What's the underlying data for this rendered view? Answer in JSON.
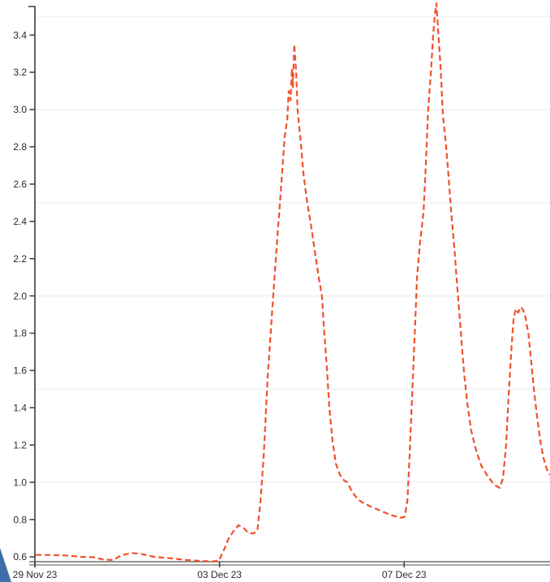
{
  "chart_data": {
    "type": "line",
    "title": "",
    "xlabel": "",
    "ylabel": "",
    "legend": "none",
    "grid": "horizontal, every 0.5 from 1.0 to 3.5, very light",
    "x_axis": {
      "unit": "date",
      "ticks": [
        {
          "d": 0,
          "label": "29 Nov 23"
        },
        {
          "d": 4,
          "label": "03 Dec 23"
        },
        {
          "d": 8,
          "label": "07 Dec 23"
        }
      ],
      "range_days_shown": [
        0,
        11.16
      ]
    },
    "y_axis": {
      "tick_values": [
        0.6,
        0.8,
        1.0,
        1.2,
        1.4,
        1.6,
        1.8,
        2.0,
        2.2,
        2.4,
        2.6,
        2.8,
        3.0,
        3.2,
        3.4
      ],
      "tick_labels": [
        "0.6",
        "0.8",
        "1.0",
        "1.2",
        "1.4",
        "1.6",
        "1.8",
        "2.0",
        "2.2",
        "2.4",
        "2.6",
        "2.8",
        "3.0",
        "3.2",
        "3.4"
      ],
      "range_shown": [
        0.57,
        3.59
      ]
    },
    "gridline_values": [
      1.0,
      1.5,
      2.0,
      2.5,
      3.0,
      3.5
    ],
    "series": [
      {
        "name": "dashed-orange-series",
        "style": "dashed",
        "color": "#f0512c",
        "points": [
          [
            0.02,
            0.61
          ],
          [
            0.3,
            0.61
          ],
          [
            0.65,
            0.608
          ],
          [
            1.0,
            0.6
          ],
          [
            1.27,
            0.598
          ],
          [
            1.49,
            0.585
          ],
          [
            1.7,
            0.583
          ],
          [
            1.88,
            0.61
          ],
          [
            2.11,
            0.62
          ],
          [
            2.32,
            0.615
          ],
          [
            2.58,
            0.6
          ],
          [
            2.94,
            0.592
          ],
          [
            3.29,
            0.583
          ],
          [
            3.6,
            0.578
          ],
          [
            3.85,
            0.575
          ],
          [
            3.99,
            0.58
          ],
          [
            4.1,
            0.64
          ],
          [
            4.2,
            0.7
          ],
          [
            4.31,
            0.74
          ],
          [
            4.41,
            0.77
          ],
          [
            4.52,
            0.755
          ],
          [
            4.62,
            0.73
          ],
          [
            4.73,
            0.725
          ],
          [
            4.82,
            0.74
          ],
          [
            4.89,
            0.9
          ],
          [
            4.96,
            1.15
          ],
          [
            5.04,
            1.55
          ],
          [
            5.15,
            1.95
          ],
          [
            5.25,
            2.3
          ],
          [
            5.34,
            2.6
          ],
          [
            5.41,
            2.85
          ],
          [
            5.47,
            2.95
          ],
          [
            5.5,
            3.1
          ],
          [
            5.54,
            3.05
          ],
          [
            5.57,
            3.22
          ],
          [
            5.59,
            3.12
          ],
          [
            5.62,
            3.35
          ],
          [
            5.66,
            3.2
          ],
          [
            5.69,
            3.0
          ],
          [
            5.75,
            2.85
          ],
          [
            5.82,
            2.65
          ],
          [
            5.89,
            2.52
          ],
          [
            5.98,
            2.38
          ],
          [
            6.06,
            2.25
          ],
          [
            6.15,
            2.1
          ],
          [
            6.22,
            2.0
          ],
          [
            6.27,
            1.8
          ],
          [
            6.33,
            1.6
          ],
          [
            6.38,
            1.4
          ],
          [
            6.45,
            1.22
          ],
          [
            6.52,
            1.1
          ],
          [
            6.61,
            1.04
          ],
          [
            6.7,
            1.01
          ],
          [
            6.77,
            1.0
          ],
          [
            6.87,
            0.95
          ],
          [
            6.99,
            0.91
          ],
          [
            7.14,
            0.885
          ],
          [
            7.28,
            0.87
          ],
          [
            7.42,
            0.855
          ],
          [
            7.56,
            0.84
          ],
          [
            7.7,
            0.825
          ],
          [
            7.84,
            0.815
          ],
          [
            7.94,
            0.81
          ],
          [
            8.01,
            0.815
          ],
          [
            8.07,
            0.9
          ],
          [
            8.12,
            1.15
          ],
          [
            8.17,
            1.45
          ],
          [
            8.23,
            1.8
          ],
          [
            8.28,
            2.1
          ],
          [
            8.35,
            2.3
          ],
          [
            8.42,
            2.45
          ],
          [
            8.47,
            2.7
          ],
          [
            8.52,
            3.0
          ],
          [
            8.58,
            3.2
          ],
          [
            8.63,
            3.4
          ],
          [
            8.67,
            3.52
          ],
          [
            8.7,
            3.57
          ],
          [
            8.73,
            3.45
          ],
          [
            8.79,
            3.22
          ],
          [
            8.84,
            2.97
          ],
          [
            8.91,
            2.8
          ],
          [
            8.96,
            2.65
          ],
          [
            9.02,
            2.45
          ],
          [
            9.09,
            2.25
          ],
          [
            9.16,
            2.02
          ],
          [
            9.23,
            1.8
          ],
          [
            9.3,
            1.58
          ],
          [
            9.37,
            1.42
          ],
          [
            9.45,
            1.28
          ],
          [
            9.56,
            1.17
          ],
          [
            9.67,
            1.09
          ],
          [
            9.79,
            1.04
          ],
          [
            9.91,
            1.0
          ],
          [
            10.0,
            0.98
          ],
          [
            10.07,
            0.97
          ],
          [
            10.14,
            1.02
          ],
          [
            10.21,
            1.2
          ],
          [
            10.26,
            1.45
          ],
          [
            10.32,
            1.7
          ],
          [
            10.37,
            1.88
          ],
          [
            10.42,
            1.93
          ],
          [
            10.47,
            1.91
          ],
          [
            10.53,
            1.94
          ],
          [
            10.58,
            1.925
          ],
          [
            10.63,
            1.885
          ],
          [
            10.69,
            1.8
          ],
          [
            10.74,
            1.68
          ],
          [
            10.81,
            1.5
          ],
          [
            10.88,
            1.35
          ],
          [
            10.95,
            1.22
          ],
          [
            11.02,
            1.13
          ],
          [
            11.09,
            1.07
          ],
          [
            11.16,
            1.04
          ]
        ]
      }
    ],
    "annotations": {
      "peak_1": {
        "d": 5.62,
        "value": 3.35
      },
      "peak_2": {
        "d": 8.7,
        "value": 3.57
      },
      "peak_3": {
        "d": 10.53,
        "value": 1.94
      }
    }
  },
  "colors": {
    "background": "#ffffff",
    "series_line": "#f0512c",
    "gridline": "#efefef",
    "axis_dark": "#3c3c3c",
    "axis_gray": "#6e6e6e",
    "axis_gray_2": "#8a8a8a",
    "tick_text": "#2b2b2b"
  },
  "decor": {
    "corner_triangle_color": "#3e6fa6"
  }
}
